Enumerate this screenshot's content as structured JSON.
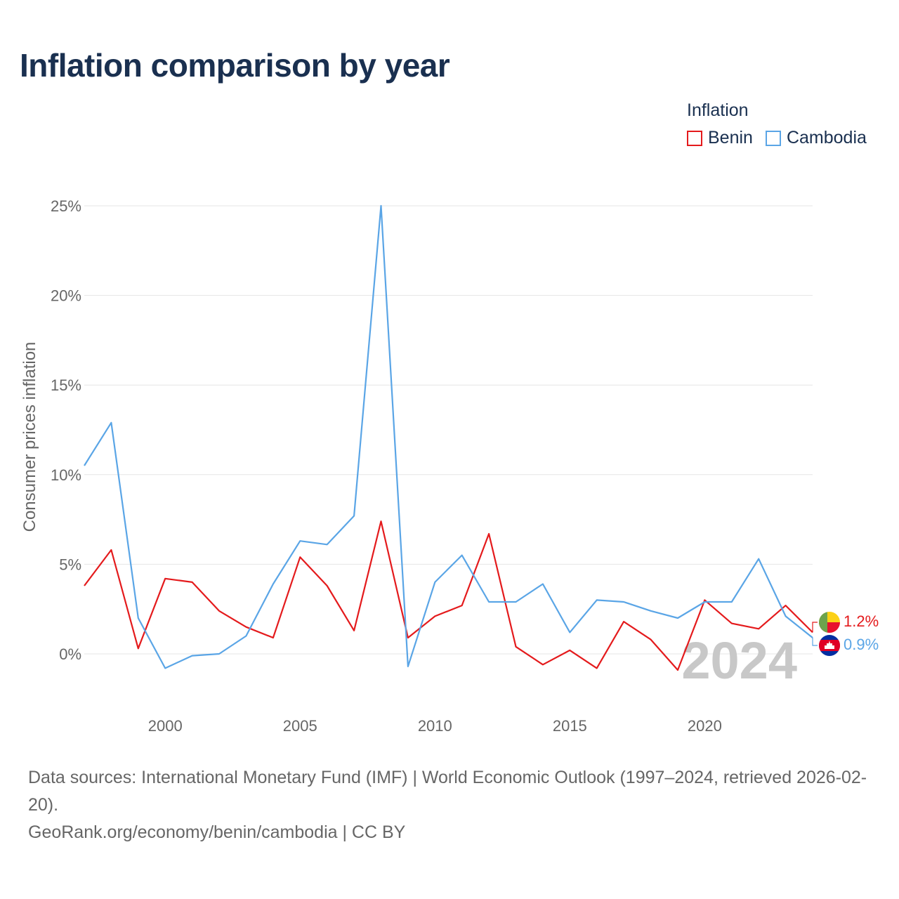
{
  "title": "Inflation comparison by year",
  "legend": {
    "title": "Inflation",
    "items": [
      {
        "label": "Benin",
        "color": "#e41a1c"
      },
      {
        "label": "Cambodia",
        "color": "#5aa5e6"
      }
    ]
  },
  "year_watermark": "2024",
  "chart_data": {
    "type": "line",
    "title": "Inflation comparison by year",
    "xlabel": "",
    "ylabel": "Consumer prices inflation",
    "x": [
      1997,
      1998,
      1999,
      2000,
      2001,
      2002,
      2003,
      2004,
      2005,
      2006,
      2007,
      2008,
      2009,
      2010,
      2011,
      2012,
      2013,
      2014,
      2015,
      2016,
      2017,
      2018,
      2019,
      2020,
      2021,
      2022,
      2023,
      2024
    ],
    "xticks": [
      2000,
      2005,
      2010,
      2015,
      2020
    ],
    "xtick_labels": [
      "2000",
      "2005",
      "2010",
      "2015",
      "2020"
    ],
    "xlim": [
      1997,
      2024
    ],
    "ylim": [
      -2.5,
      26
    ],
    "yticks": [
      0,
      5,
      10,
      15,
      20,
      25
    ],
    "ytick_labels": [
      "0%",
      "5%",
      "10%",
      "15%",
      "20%",
      "25%"
    ],
    "grid": true,
    "series": [
      {
        "name": "Benin",
        "color": "#e41a1c",
        "end_label": "1.2%",
        "values": [
          3.8,
          5.8,
          0.3,
          4.2,
          4.0,
          2.4,
          1.5,
          0.9,
          5.4,
          3.8,
          1.3,
          7.4,
          0.9,
          2.1,
          2.7,
          6.7,
          0.4,
          -0.6,
          0.2,
          -0.8,
          1.8,
          0.8,
          -0.9,
          3.0,
          1.7,
          1.4,
          2.7,
          1.2
        ]
      },
      {
        "name": "Cambodia",
        "color": "#5aa5e6",
        "end_label": "0.9%",
        "values": [
          10.5,
          12.9,
          2.0,
          -0.8,
          -0.1,
          0.0,
          1.0,
          3.9,
          6.3,
          6.1,
          7.7,
          25.0,
          -0.7,
          4.0,
          5.5,
          2.9,
          2.9,
          3.9,
          1.2,
          3.0,
          2.9,
          2.4,
          2.0,
          2.9,
          2.9,
          5.3,
          2.1,
          0.9
        ]
      }
    ]
  },
  "footer": {
    "sources": "Data sources: International Monetary Fund (IMF) | World Economic Outlook (1997–2024, retrieved 2026-02-20).",
    "credit": "GeoRank.org/economy/benin/cambodia | CC BY"
  }
}
